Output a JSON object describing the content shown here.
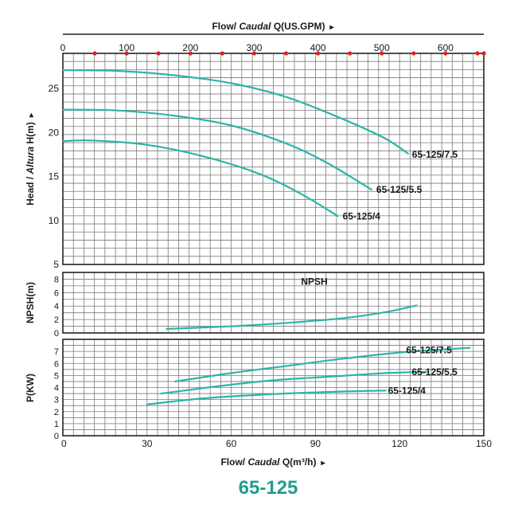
{
  "top_axis": {
    "label_prefix": "Flow/ ",
    "label_italic": "Caudal",
    "label_suffix": " Q(US.GPM)",
    "arrow": "▸"
  },
  "bottom_axis": {
    "label_prefix": "Flow/ ",
    "label_italic": "Caudal",
    "label_suffix": " Q(m³/h)",
    "arrow": "▸"
  },
  "footer_title": "65-125",
  "colors": {
    "curve": "#2cb5a8",
    "grid": "#7a7a7a",
    "frame": "#222222",
    "marker": "#e0201c",
    "title": "#1f9e8f"
  },
  "chart_data": [
    {
      "type": "line",
      "panel": "head",
      "ylabel_prefix": "Head / ",
      "ylabel_italic": "Altura",
      "ylabel_suffix": " H(m)",
      "ylabel_arrow": "▸",
      "xlim": [
        0,
        150
      ],
      "ylim": [
        5,
        29
      ],
      "yticks": [
        5,
        10,
        15,
        20,
        25
      ],
      "top_xlim": [
        0,
        660
      ],
      "top_xticks": [
        0,
        100,
        200,
        300,
        400,
        500,
        600
      ],
      "top_markers": [
        50,
        100,
        150,
        200,
        250,
        300,
        350,
        400,
        450,
        500,
        550,
        600,
        650
      ],
      "series": [
        {
          "name": "65-125/7.5",
          "x": [
            0,
            20,
            40,
            60,
            80,
            100,
            115,
            123
          ],
          "y": [
            27.1,
            27.0,
            26.5,
            25.6,
            24.0,
            21.5,
            19.3,
            17.6
          ]
        },
        {
          "name": "65-125/5.5",
          "x": [
            0,
            20,
            40,
            60,
            80,
            95,
            110
          ],
          "y": [
            22.6,
            22.5,
            21.9,
            20.8,
            18.7,
            16.4,
            13.5
          ]
        },
        {
          "name": "65-125/4",
          "x": [
            0,
            10,
            30,
            50,
            70,
            85,
            98
          ],
          "y": [
            19.0,
            19.1,
            18.6,
            17.3,
            15.3,
            13.0,
            10.5
          ]
        }
      ]
    },
    {
      "type": "line",
      "panel": "npsh",
      "ylabel": "NPSH(m)",
      "xlim": [
        0,
        150
      ],
      "ylim": [
        0,
        9
      ],
      "yticks": [
        0,
        2,
        4,
        6,
        8
      ],
      "series": [
        {
          "name": "NPSH",
          "x": [
            37,
            60,
            80,
            100,
            115,
            126
          ],
          "y": [
            0.6,
            1.0,
            1.5,
            2.2,
            3.1,
            4.1
          ]
        }
      ]
    },
    {
      "type": "line",
      "panel": "power",
      "ylabel": "P(KW)",
      "xlim": [
        0,
        150
      ],
      "ylim": [
        0,
        8
      ],
      "yticks": [
        0,
        1,
        2,
        3,
        4,
        5,
        6,
        7
      ],
      "xticks": [
        0,
        30,
        60,
        90,
        120,
        150
      ],
      "series": [
        {
          "name": "65-125/7.5",
          "x": [
            40,
            60,
            80,
            100,
            120,
            145
          ],
          "y": [
            4.5,
            5.2,
            5.8,
            6.4,
            6.9,
            7.3
          ]
        },
        {
          "name": "65-125/5.5",
          "x": [
            35,
            55,
            75,
            95,
            115,
            130
          ],
          "y": [
            3.5,
            4.1,
            4.6,
            4.9,
            5.2,
            5.3
          ]
        },
        {
          "name": "65-125/4",
          "x": [
            30,
            50,
            70,
            90,
            105,
            115
          ],
          "y": [
            2.6,
            3.1,
            3.4,
            3.6,
            3.7,
            3.75
          ]
        }
      ]
    }
  ]
}
